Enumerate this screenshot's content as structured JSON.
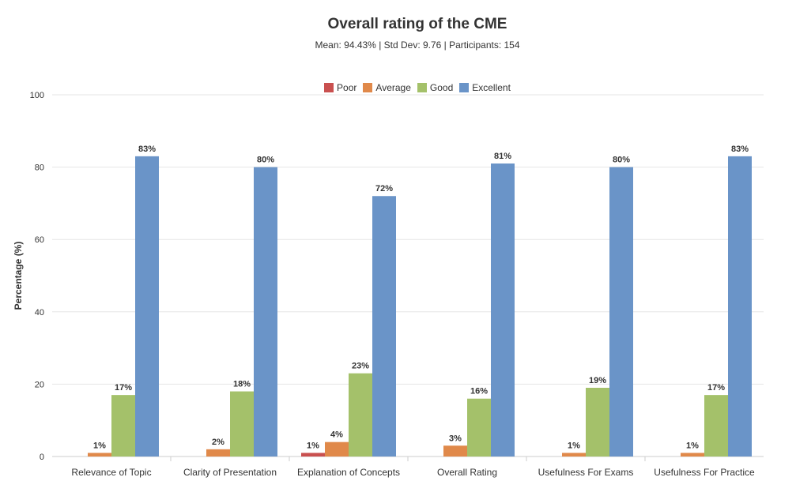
{
  "chart_data": {
    "type": "bar",
    "title": "Overall rating of the CME",
    "subtitle": "Mean: 94.43% | Std Dev: 9.76 | Participants: 154",
    "xlabel": "",
    "ylabel": "Percentage (%)",
    "ylim": [
      0,
      100
    ],
    "yticks": [
      0,
      20,
      40,
      60,
      80,
      100
    ],
    "grid": true,
    "legend_position": "top",
    "categories": [
      "Relevance of Topic",
      "Clarity of Presentation",
      "Explanation of Concepts",
      "Overall Rating",
      "Usefulness For Exams",
      "Usefulness For Practice"
    ],
    "series": [
      {
        "name": "Poor",
        "color": "#c9504f",
        "values": [
          0,
          0,
          1,
          0,
          0,
          0
        ]
      },
      {
        "name": "Average",
        "color": "#e0894a",
        "values": [
          1,
          2,
          4,
          3,
          1,
          1
        ]
      },
      {
        "name": "Good",
        "color": "#a4c16a",
        "values": [
          17,
          18,
          23,
          16,
          19,
          17
        ]
      },
      {
        "name": "Excellent",
        "color": "#6a94c8",
        "values": [
          83,
          80,
          72,
          81,
          80,
          83
        ]
      }
    ]
  }
}
